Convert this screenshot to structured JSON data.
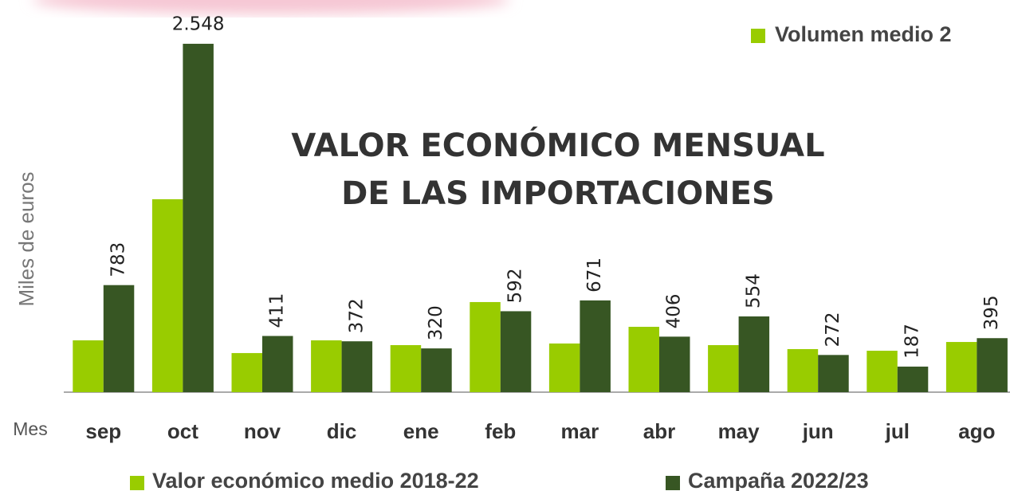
{
  "chart_data": {
    "type": "bar",
    "title": [
      "VALOR ECONÓMICO MENSUAL",
      "DE LAS IMPORTACIONES"
    ],
    "y_label": "Miles de euros",
    "x_label": "Mes",
    "top_legend": "Volumen medio 2",
    "categories": [
      "sep",
      "oct",
      "nov",
      "dic",
      "ene",
      "feb",
      "mar",
      "abr",
      "may",
      "jun",
      "jul",
      "ago"
    ],
    "series": [
      {
        "name": "Valor económico medio 2018-22",
        "color": "#99cc00",
        "values": [
          379,
          1411,
          286,
          379,
          344,
          659,
          356,
          478,
          344,
          315,
          303,
          367
        ]
      },
      {
        "name": "Campaña 2022/23",
        "color": "#375623",
        "values": [
          783,
          2548,
          411,
          372,
          320,
          592,
          671,
          406,
          554,
          272,
          187,
          395
        ],
        "value_labels": [
          "783",
          "2.548",
          "411",
          "372",
          "320",
          "592",
          "671",
          "406",
          "554",
          "272",
          "187",
          "395"
        ]
      }
    ],
    "ylim": [
      0,
      2600
    ]
  }
}
